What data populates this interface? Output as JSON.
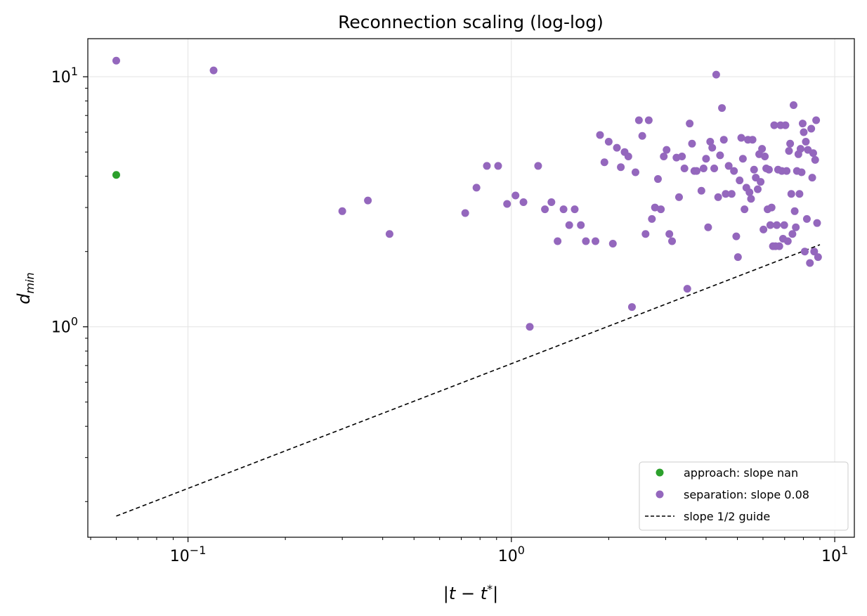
{
  "chart_data": {
    "type": "scatter",
    "title": "Reconnection scaling (log-log)",
    "xlabel": "|t−t*|",
    "ylabel": "d_min",
    "xscale": "log",
    "yscale": "log",
    "xlim": [
      0.049,
      11.5
    ],
    "ylim": [
      0.144,
      14.2
    ],
    "x_major_ticks": [
      {
        "value": 0.1,
        "base": "10",
        "exp": "−1"
      },
      {
        "value": 1,
        "base": "10",
        "exp": "0"
      },
      {
        "value": 10,
        "base": "10",
        "exp": "1"
      }
    ],
    "y_major_ticks": [
      {
        "value": 1,
        "base": "10",
        "exp": "0"
      },
      {
        "value": 10,
        "base": "10",
        "exp": "1"
      }
    ],
    "grid": true,
    "legend_position": "lower-right",
    "series": [
      {
        "name": "approach: slope nan",
        "kind": "scatter",
        "color": "#2ca02c",
        "points": [
          [
            0.06,
            4.05
          ]
        ]
      },
      {
        "name": "separation: slope 0.08",
        "kind": "scatter",
        "color": "#9467bd",
        "points": [
          [
            0.06,
            11.6
          ],
          [
            0.12,
            10.6
          ],
          [
            0.3,
            2.9
          ],
          [
            0.36,
            3.2
          ],
          [
            0.42,
            2.35
          ],
          [
            0.72,
            2.85
          ],
          [
            0.78,
            3.6
          ],
          [
            0.84,
            4.4
          ],
          [
            0.91,
            4.4
          ],
          [
            0.97,
            3.1
          ],
          [
            1.03,
            3.35
          ],
          [
            1.09,
            3.15
          ],
          [
            1.14,
            1.0
          ],
          [
            1.21,
            4.4
          ],
          [
            1.27,
            2.95
          ],
          [
            1.33,
            3.15
          ],
          [
            1.39,
            2.2
          ],
          [
            1.45,
            2.95
          ],
          [
            1.51,
            2.55
          ],
          [
            1.57,
            2.95
          ],
          [
            1.64,
            2.55
          ],
          [
            1.7,
            2.2
          ],
          [
            1.82,
            2.2
          ],
          [
            1.88,
            5.85
          ],
          [
            1.94,
            4.55
          ],
          [
            2.0,
            5.5
          ],
          [
            2.06,
            2.15
          ],
          [
            2.12,
            5.2
          ],
          [
            2.18,
            4.35
          ],
          [
            2.24,
            5.0
          ],
          [
            2.3,
            4.8
          ],
          [
            2.36,
            1.2
          ],
          [
            2.42,
            4.15
          ],
          [
            2.48,
            6.7
          ],
          [
            2.54,
            5.8
          ],
          [
            2.6,
            2.35
          ],
          [
            2.66,
            6.7
          ],
          [
            2.72,
            2.7
          ],
          [
            2.78,
            3.0
          ],
          [
            2.84,
            3.9
          ],
          [
            2.9,
            2.95
          ],
          [
            2.96,
            4.8
          ],
          [
            3.02,
            5.1
          ],
          [
            3.08,
            2.35
          ],
          [
            3.14,
            2.2
          ],
          [
            3.24,
            4.75
          ],
          [
            3.3,
            3.3
          ],
          [
            3.37,
            4.8
          ],
          [
            3.43,
            4.3
          ],
          [
            3.5,
            1.42
          ],
          [
            3.56,
            6.5
          ],
          [
            3.62,
            5.4
          ],
          [
            3.68,
            4.2
          ],
          [
            3.74,
            4.2
          ],
          [
            3.87,
            3.5
          ],
          [
            3.93,
            4.3
          ],
          [
            4.0,
            4.7
          ],
          [
            4.06,
            2.5
          ],
          [
            4.12,
            5.5
          ],
          [
            4.18,
            5.2
          ],
          [
            4.24,
            4.3
          ],
          [
            4.3,
            10.2
          ],
          [
            4.36,
            3.3
          ],
          [
            4.42,
            4.85
          ],
          [
            4.48,
            7.5
          ],
          [
            4.54,
            5.6
          ],
          [
            4.6,
            3.4
          ],
          [
            4.7,
            4.4
          ],
          [
            4.8,
            3.4
          ],
          [
            4.88,
            4.2
          ],
          [
            4.96,
            2.3
          ],
          [
            5.02,
            1.9
          ],
          [
            5.08,
            3.85
          ],
          [
            5.14,
            5.7
          ],
          [
            5.2,
            4.7
          ],
          [
            5.26,
            2.95
          ],
          [
            5.33,
            3.6
          ],
          [
            5.39,
            5.6
          ],
          [
            5.45,
            3.45
          ],
          [
            5.51,
            3.25
          ],
          [
            5.57,
            5.6
          ],
          [
            5.63,
            4.25
          ],
          [
            5.7,
            3.95
          ],
          [
            5.78,
            3.55
          ],
          [
            5.84,
            4.9
          ],
          [
            5.9,
            3.8
          ],
          [
            5.96,
            5.15
          ],
          [
            6.02,
            2.45
          ],
          [
            6.08,
            4.8
          ],
          [
            6.14,
            4.3
          ],
          [
            6.2,
            2.95
          ],
          [
            6.26,
            4.25
          ],
          [
            6.32,
            2.55
          ],
          [
            6.38,
            3.0
          ],
          [
            6.44,
            2.1
          ],
          [
            6.5,
            6.4
          ],
          [
            6.56,
            2.1
          ],
          [
            6.62,
            2.55
          ],
          [
            6.68,
            4.25
          ],
          [
            6.74,
            2.1
          ],
          [
            6.8,
            6.4
          ],
          [
            6.86,
            4.2
          ],
          [
            6.92,
            2.25
          ],
          [
            6.98,
            2.55
          ],
          [
            7.04,
            6.4
          ],
          [
            7.1,
            4.2
          ],
          [
            7.16,
            2.2
          ],
          [
            7.22,
            5.05
          ],
          [
            7.28,
            5.4
          ],
          [
            7.34,
            3.4
          ],
          [
            7.4,
            2.35
          ],
          [
            7.46,
            7.7
          ],
          [
            7.52,
            2.9
          ],
          [
            7.58,
            2.5
          ],
          [
            7.64,
            4.2
          ],
          [
            7.72,
            4.9
          ],
          [
            7.78,
            3.4
          ],
          [
            7.84,
            5.15
          ],
          [
            7.9,
            4.15
          ],
          [
            7.96,
            6.5
          ],
          [
            8.02,
            6.0
          ],
          [
            8.08,
            2.0
          ],
          [
            8.14,
            5.5
          ],
          [
            8.2,
            2.7
          ],
          [
            8.26,
            5.1
          ],
          [
            8.38,
            1.8
          ],
          [
            8.46,
            6.2
          ],
          [
            8.52,
            3.95
          ],
          [
            8.58,
            4.95
          ],
          [
            8.64,
            2.0
          ],
          [
            8.7,
            4.65
          ],
          [
            8.76,
            6.7
          ],
          [
            8.82,
            2.6
          ],
          [
            8.88,
            1.9
          ]
        ]
      },
      {
        "name": "slope 1/2 guide",
        "kind": "line",
        "color": "#000000",
        "dashed": true,
        "points": [
          [
            0.06,
            0.175
          ],
          [
            9.0,
            2.13
          ]
        ]
      }
    ]
  }
}
